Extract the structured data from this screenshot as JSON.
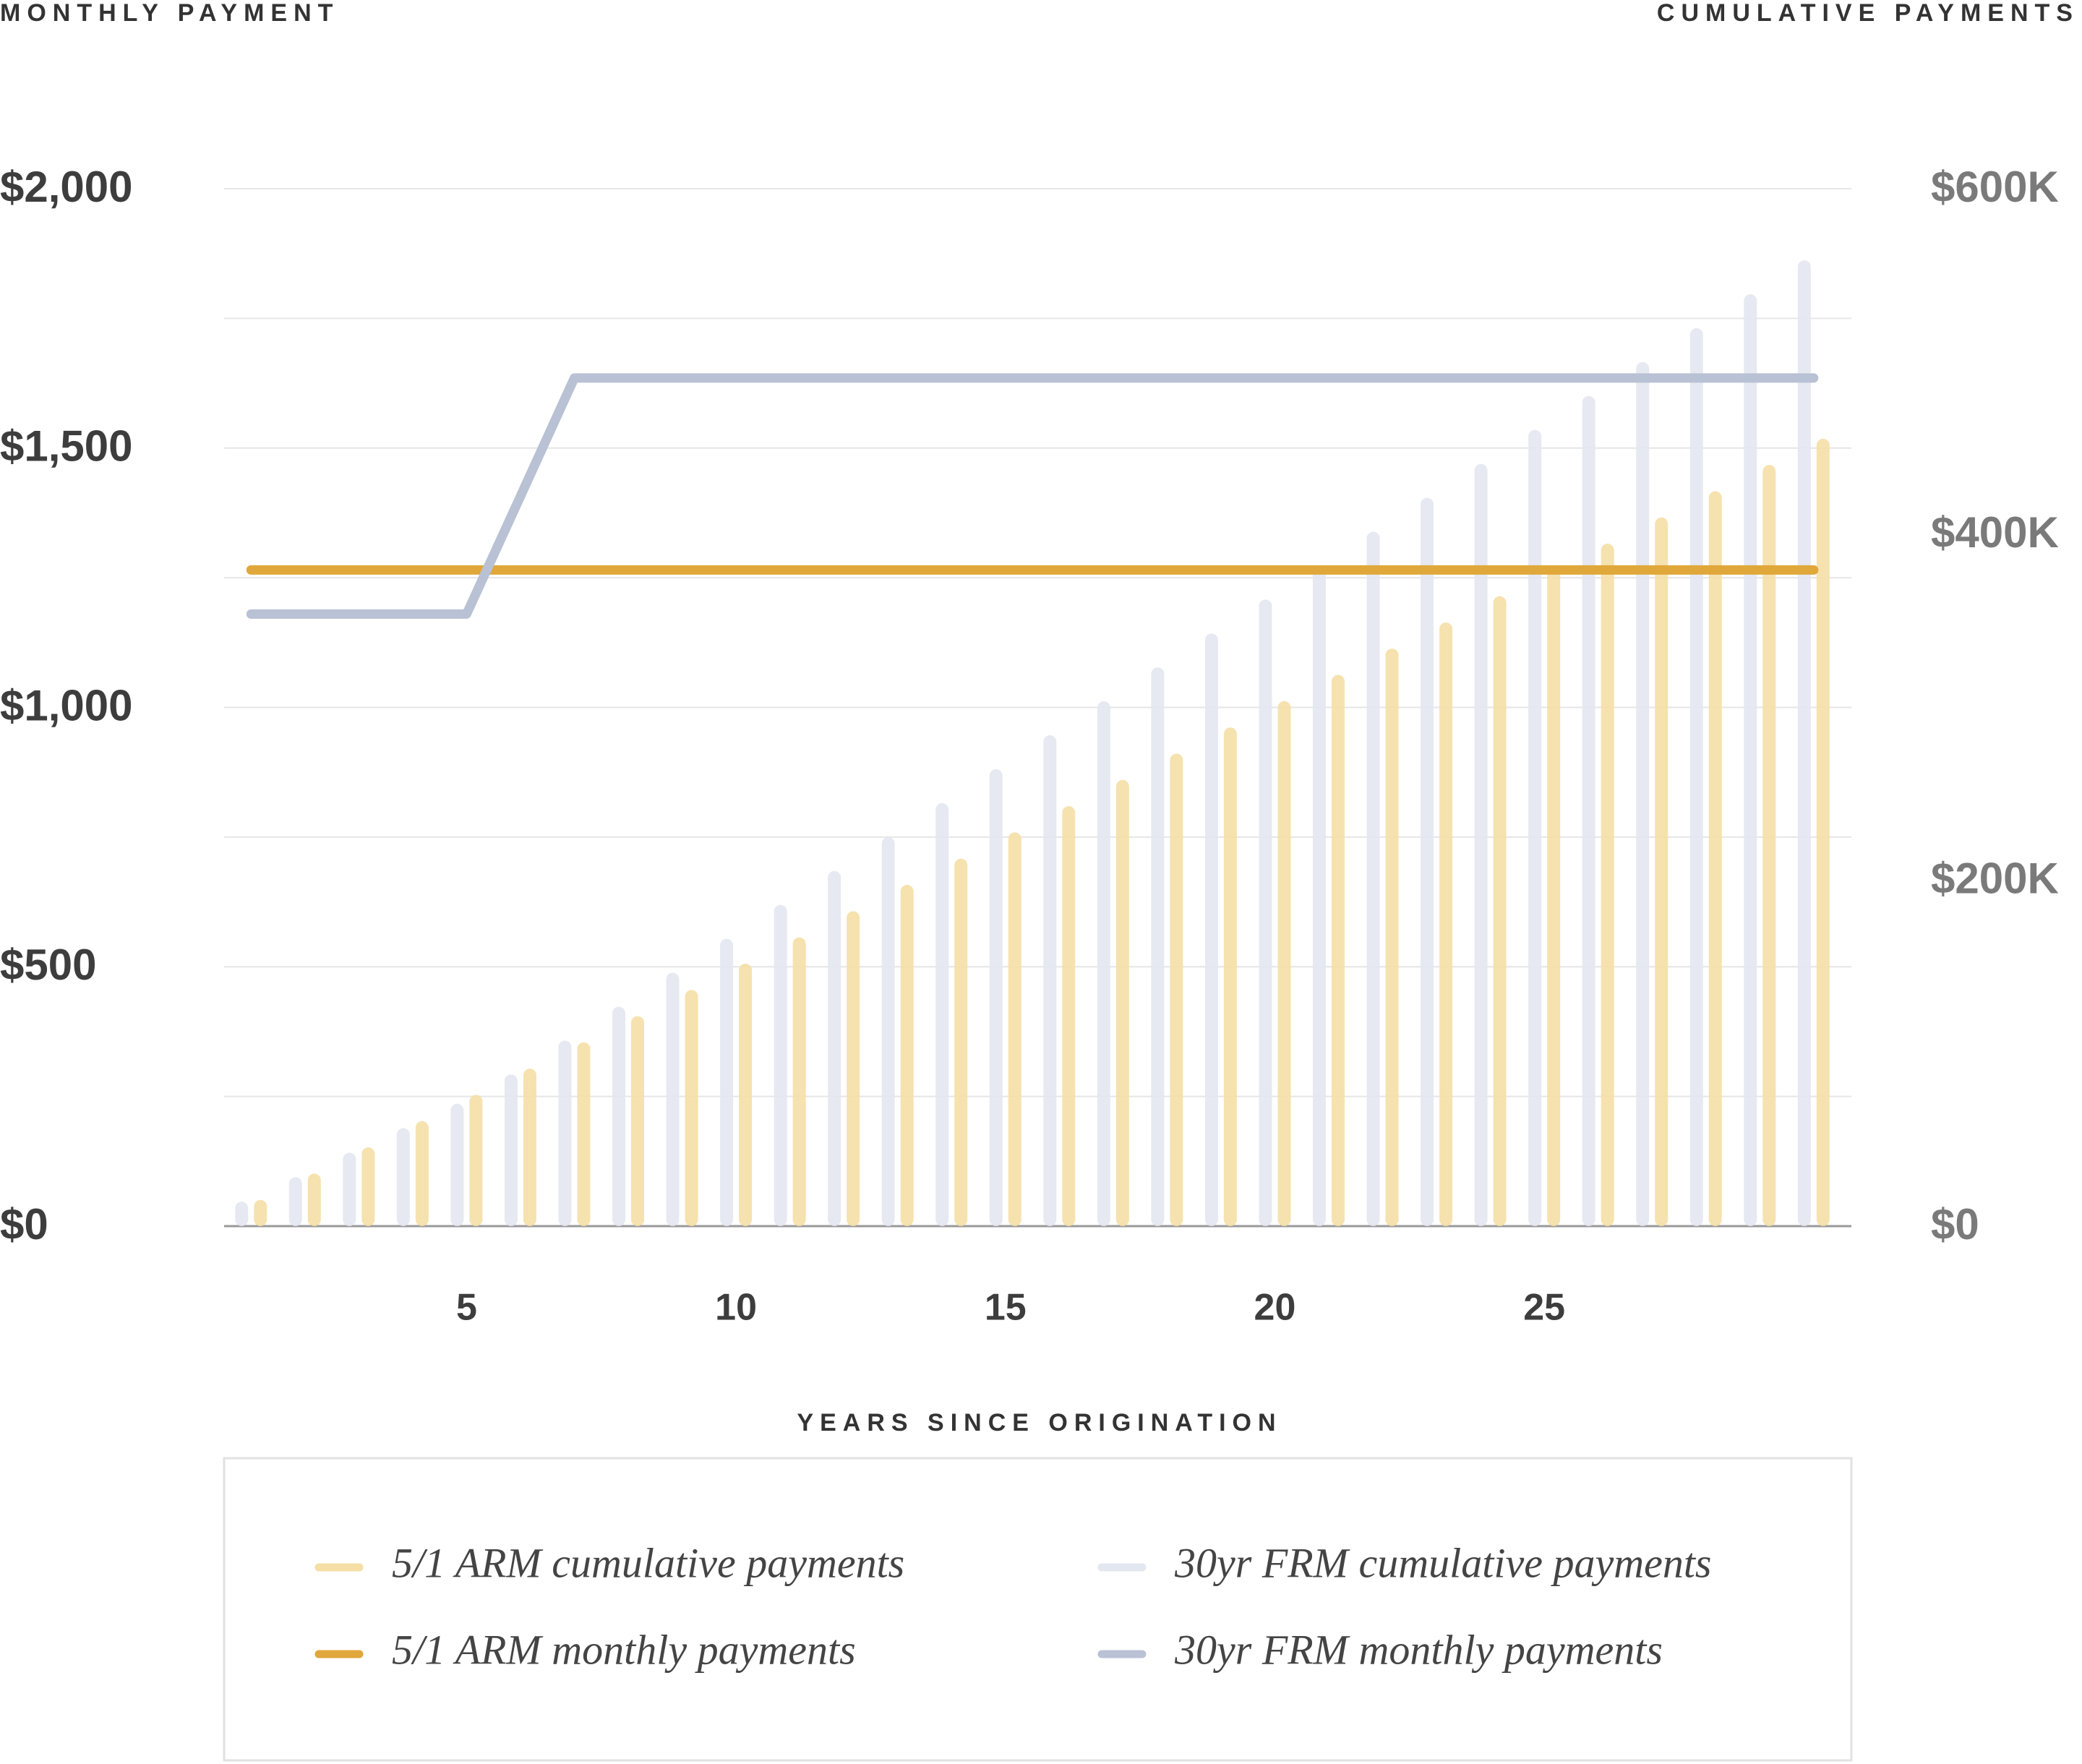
{
  "chart_data": {
    "type": "bar",
    "y_axis_title": "MONTHLY PAYMENT",
    "y2_axis_title": "CUMULATIVE PAYMENTS",
    "x_axis_title": "YEARS SINCE ORIGINATION",
    "x": [
      1,
      2,
      3,
      4,
      5,
      6,
      7,
      8,
      9,
      10,
      11,
      12,
      13,
      14,
      15,
      16,
      17,
      18,
      19,
      20,
      21,
      22,
      23,
      24,
      25,
      26,
      27,
      28,
      29,
      30
    ],
    "xlim": [
      0.5,
      30.7
    ],
    "xticks": [
      5,
      10,
      15,
      20,
      25
    ],
    "ylim": [
      0,
      2000
    ],
    "yticks": [
      {
        "value": 0,
        "label": "$0"
      },
      {
        "value": 500,
        "label": "$500"
      },
      {
        "value": 1000,
        "label": "$1,000"
      },
      {
        "value": 1500,
        "label": "$1,500"
      },
      {
        "value": 2000,
        "label": "$2,000"
      }
    ],
    "minor_yticks": [
      250,
      750,
      1250,
      1750
    ],
    "y2lim": [
      0,
      600000
    ],
    "y2ticks": [
      {
        "value": 0,
        "label": "$0"
      },
      {
        "value": 200000,
        "label": "$200K"
      },
      {
        "value": 400000,
        "label": "$400K"
      },
      {
        "value": 600000,
        "label": "$600K"
      }
    ],
    "grid": true,
    "series": [
      {
        "name": "5/1 ARM cumulative payments",
        "type": "bar",
        "axis": "y2",
        "color": "#f5dfa6",
        "values": [
          15180,
          30360,
          45540,
          60720,
          75900,
          91080,
          106260,
          121440,
          136620,
          151800,
          166980,
          182160,
          197340,
          212520,
          227700,
          242880,
          258060,
          273240,
          288420,
          303600,
          318780,
          333960,
          349140,
          364320,
          379500,
          394680,
          409860,
          425040,
          440220,
          455400
        ]
      },
      {
        "name": "5/1 ARM monthly payments",
        "type": "line",
        "color": "#e0a73a",
        "values": [
          1265,
          1265,
          1265,
          1265,
          1265,
          1265,
          1265,
          1265,
          1265,
          1265,
          1265,
          1265,
          1265,
          1265,
          1265,
          1265,
          1265,
          1265,
          1265,
          1265,
          1265,
          1265,
          1265,
          1265,
          1265,
          1265,
          1265,
          1265,
          1265,
          1265
        ]
      },
      {
        "name": "30yr FRM cumulative payments",
        "type": "bar",
        "axis": "y2",
        "color": "#e3e7ef",
        "values": [
          14160,
          28320,
          42480,
          56640,
          70800,
          87684,
          107304,
          126924,
          146544,
          166164,
          185784,
          205404,
          225024,
          244644,
          264264,
          283884,
          303504,
          323124,
          342744,
          362364,
          381984,
          401604,
          421224,
          440844,
          460464,
          480084,
          499704,
          519324,
          538944,
          558564
        ]
      },
      {
        "name": "30yr FRM monthly payments",
        "type": "line",
        "color": "#b9c1d4",
        "values": [
          1180,
          1180,
          1180,
          1180,
          1180,
          1407,
          1635,
          1635,
          1635,
          1635,
          1635,
          1635,
          1635,
          1635,
          1635,
          1635,
          1635,
          1635,
          1635,
          1635,
          1635,
          1635,
          1635,
          1635,
          1635,
          1635,
          1635,
          1635,
          1635,
          1635
        ]
      }
    ]
  }
}
